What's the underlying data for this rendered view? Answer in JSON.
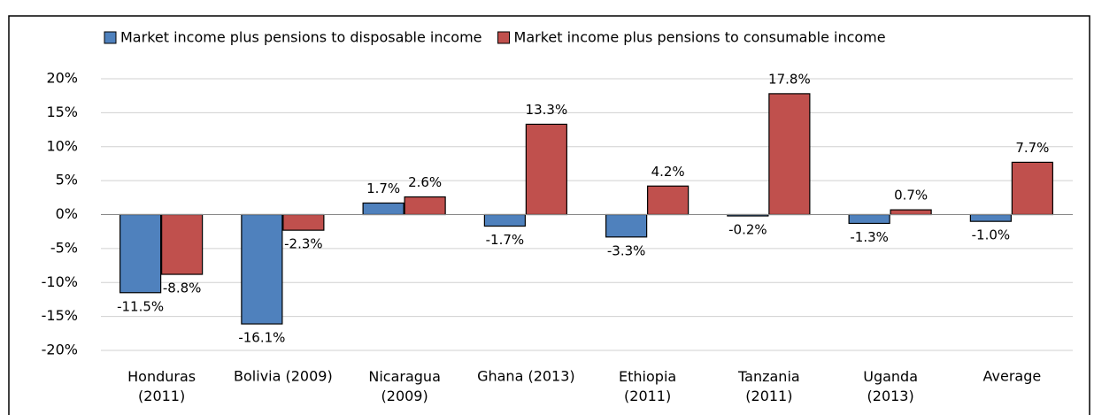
{
  "chart_data": {
    "type": "bar",
    "categories": [
      "Honduras\n(2011)",
      "Bolivia (2009)",
      "Nicaragua\n(2009)",
      "Ghana (2013)",
      "Ethiopia\n(2011)",
      "Tanzania\n(2011)",
      "Uganda\n(2013)",
      "Average"
    ],
    "series": [
      {
        "name": "Market income plus pensions to disposable income",
        "color": "#4f81bd",
        "values": [
          -11.5,
          -16.1,
          1.7,
          -1.7,
          -3.3,
          -0.2,
          -1.3,
          -1.0
        ],
        "value_labels": [
          "-11.5%",
          "-16.1%",
          "1.7%",
          "-1.7%",
          "-3.3%",
          "-0.2%",
          "-1.3%",
          "-1.0%"
        ]
      },
      {
        "name": "Market income plus pensions to consumable income",
        "color": "#c0504d",
        "values": [
          -8.8,
          -2.3,
          2.6,
          13.3,
          4.2,
          17.8,
          0.7,
          7.7
        ],
        "value_labels": [
          "-8.8%",
          "-2.3%",
          "2.6%",
          "13.3%",
          "4.2%",
          "17.8%",
          "0.7%",
          "7.7%"
        ]
      }
    ],
    "ylim": [
      -20,
      20
    ],
    "yticks": [
      {
        "value": -20,
        "label": "-20%"
      },
      {
        "value": -15,
        "label": "-15%"
      },
      {
        "value": -10,
        "label": "-10%"
      },
      {
        "value": -5,
        "label": "-5%"
      },
      {
        "value": 0,
        "label": "0%"
      },
      {
        "value": 5,
        "label": "5%"
      },
      {
        "value": 10,
        "label": "10%"
      },
      {
        "value": 15,
        "label": "15%"
      },
      {
        "value": 20,
        "label": "20%"
      }
    ],
    "grid": true,
    "legend": "top"
  }
}
